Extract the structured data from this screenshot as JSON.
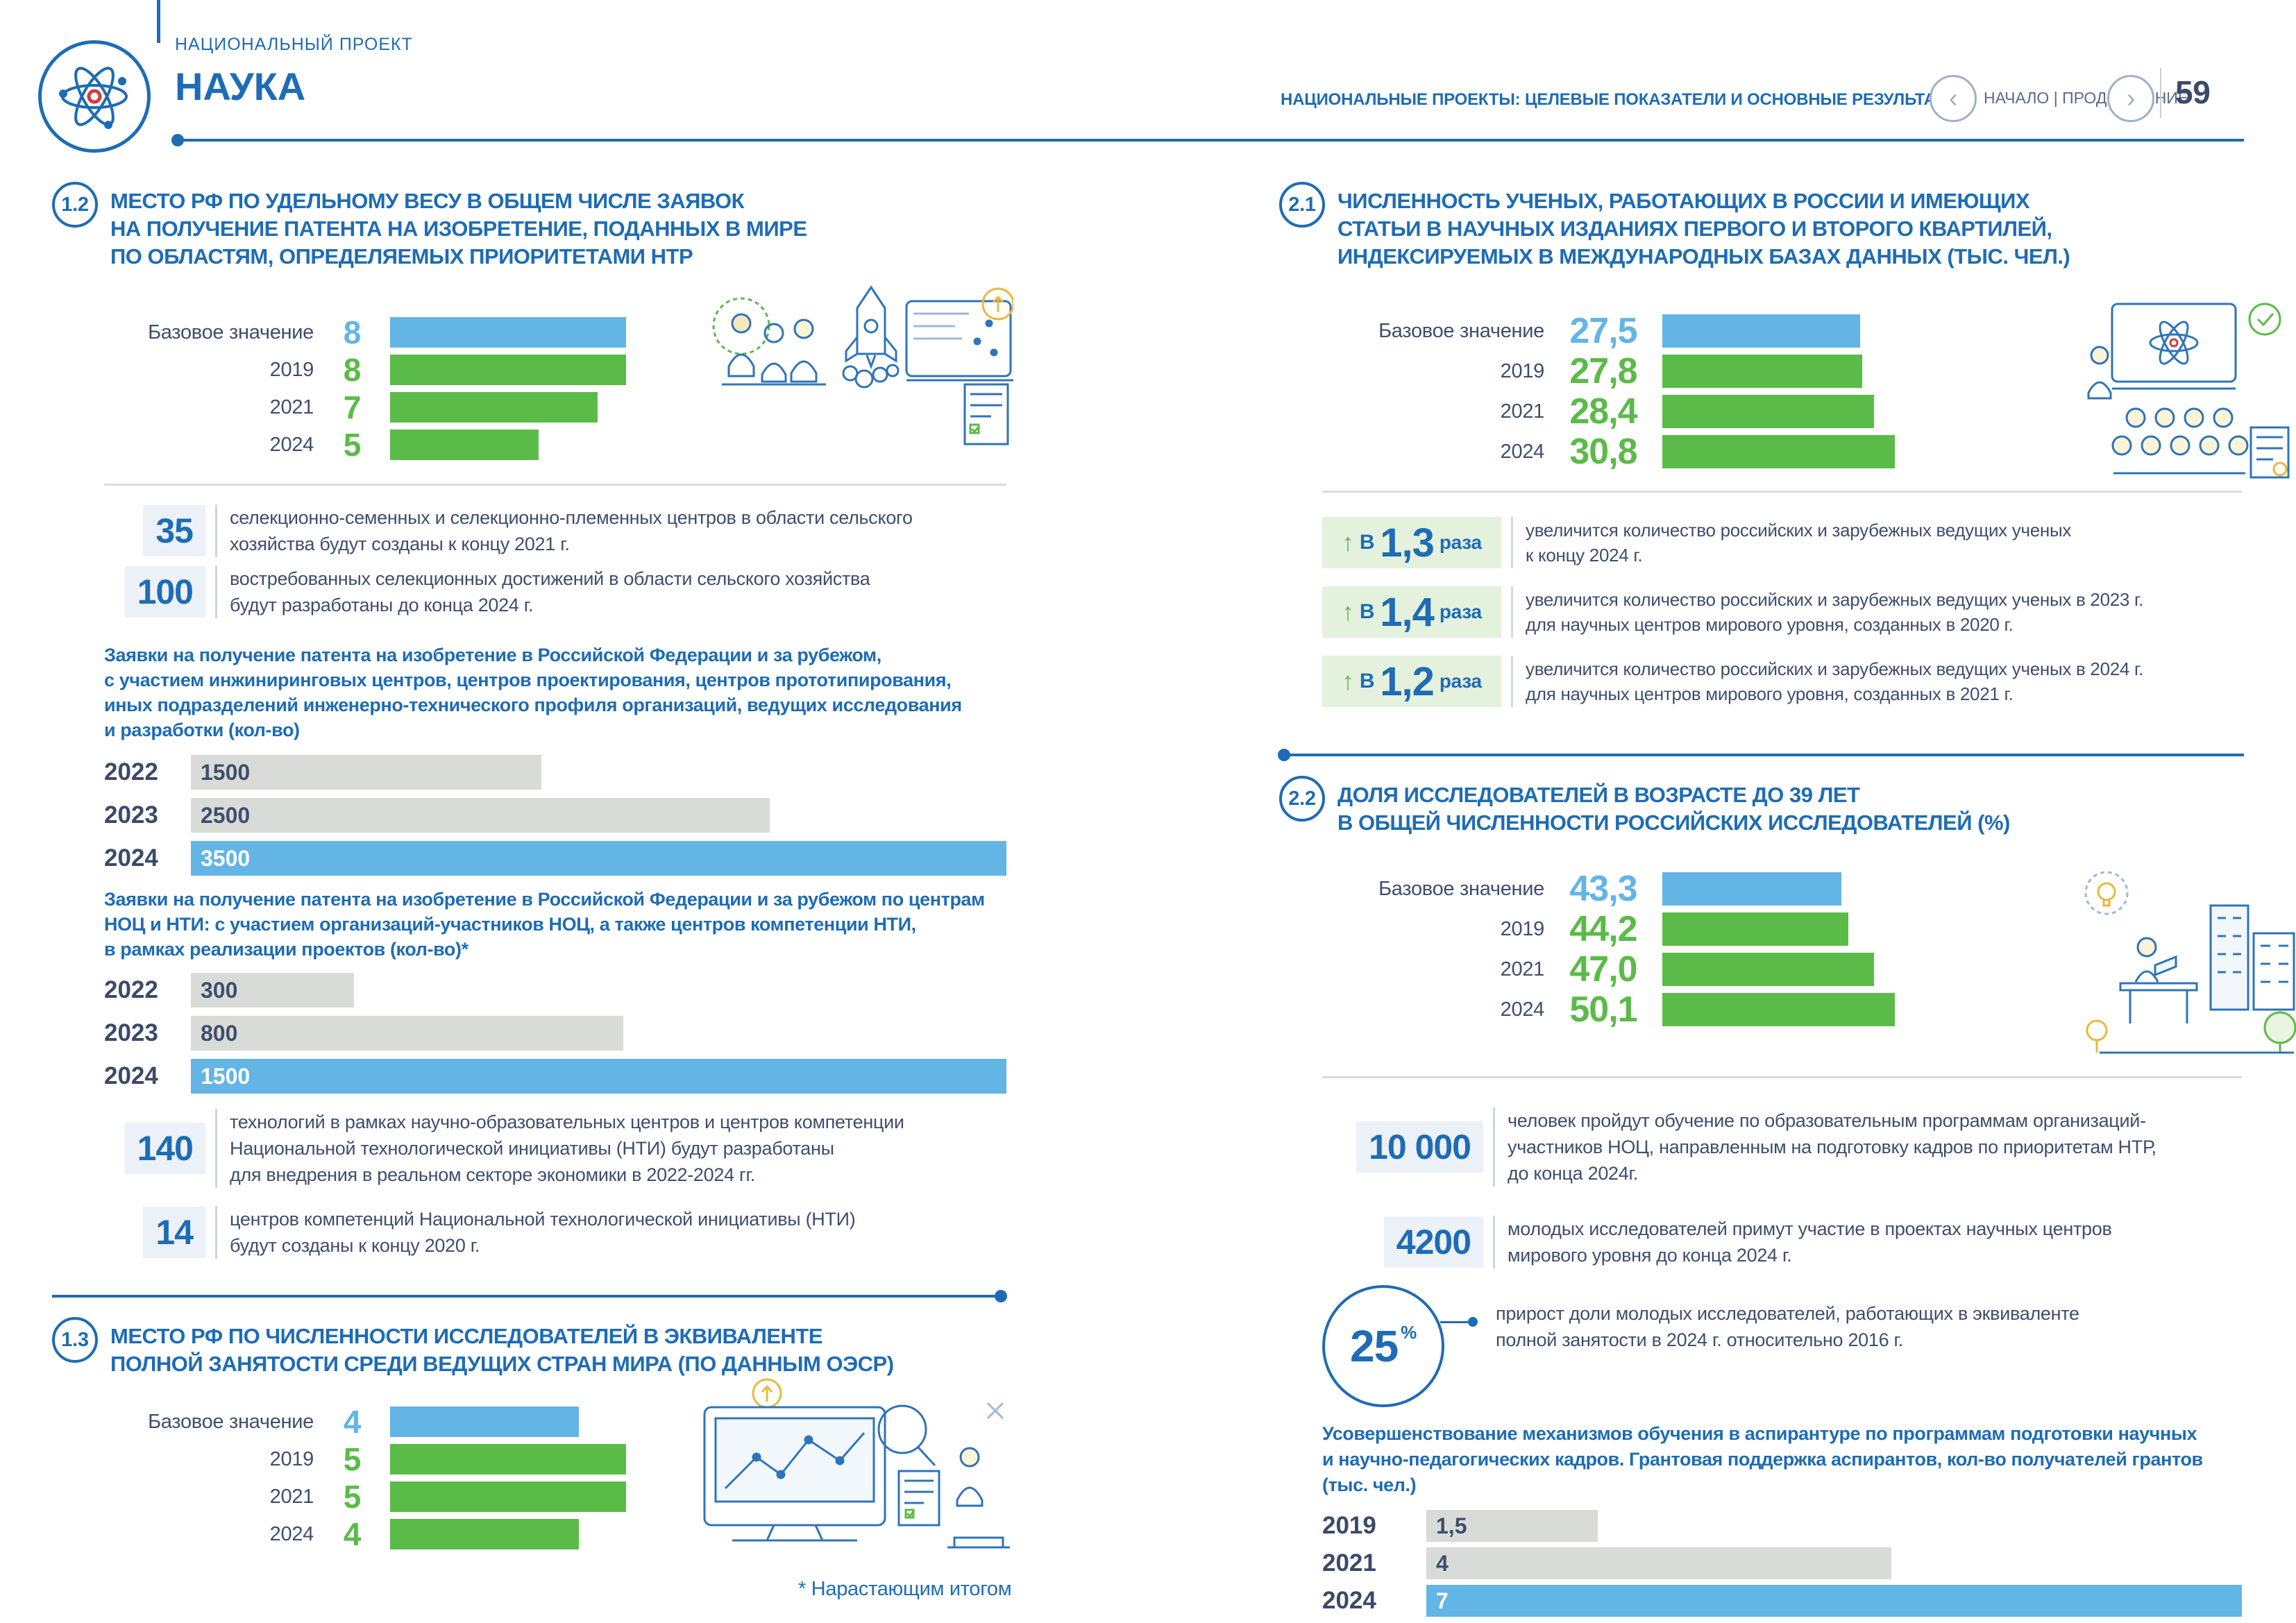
{
  "page": {
    "project_label": "НАЦИОНАЛЬНЫЙ ПРОЕКТ",
    "project_title": "НАУКА",
    "header_right": "НАЦИОНАЛЬНЫЕ ПРОЕКТЫ: ЦЕЛЕВЫЕ ПОКАЗАТЕЛИ И ОСНОВНЫЕ РЕЗУЛЬТАТЫ",
    "nav_label": "НАЧАЛО | ПРОДОЛЖЕНИЕ",
    "page_number": "59",
    "footnote": "* Нарастающим итогом"
  },
  "icons": {
    "prev": "‹",
    "next": "›",
    "up_arrow": "↑",
    "atom": "atom-icon"
  },
  "colors": {
    "blue": "#1e6cb5",
    "light_blue": "#63b5e5",
    "green": "#5bbb48",
    "gray": "#d8dbd7",
    "navy": "#3f4e6d",
    "white": "#ffffff",
    "light_green_bg": "#e4f1dc",
    "light_blue_bg": "#ecf1f8"
  },
  "sections": {
    "s12": {
      "id": "1.2",
      "title_lines": [
        "МЕСТО РФ ПО УДЕЛЬНОМУ ВЕСУ В ОБЩЕМ ЧИСЛЕ ЗАЯВОК",
        "НА ПОЛУЧЕНИЕ ПАТЕНТА НА ИЗОБРЕТЕНИЕ, ПОДАННЫХ В МИРЕ",
        "ПО ОБЛАСТЯМ, ОПРЕДЕЛЯЕМЫХ ПРИОРИТЕТАМИ НТР"
      ],
      "stats": [
        {
          "number": "35",
          "lines": [
            "селекционно-семенных и селекционно-племенных центров в области сельского",
            "хозяйства будут созданы к концу 2021 г."
          ]
        },
        {
          "number": "100",
          "lines": [
            "востребованных селекционных достижений в области сельского хозяйства",
            "будут разработаны до конца 2024 г."
          ]
        }
      ],
      "para1_lines": [
        "Заявки на получение патента на изобретение в Российской Федерации и за рубежом,",
        "с участием инжиниринговых центров, центров проектирования, центров прототипирования,",
        "иных подразделений инженерно-технического профиля организаций, ведущих исследования",
        "и разработки (кол-во)"
      ],
      "para2_lines": [
        "Заявки на получение патента на изобретение в Российской Федерации и за рубежом по центрам",
        "НОЦ и НТИ: с участием организаций-участников НОЦ, а также центров компетенции НТИ,",
        "в рамках реализации проектов (кол-во)*"
      ],
      "stats2": [
        {
          "number": "140",
          "lines": [
            "технологий в рамках научно-образовательных центров и центров компетенции",
            "Национальной технологической инициативы (НТИ) будут разработаны",
            "для внедрения в реальном секторе экономики в 2022-2024 гг."
          ]
        },
        {
          "number": "14",
          "lines": [
            "центров компетенций Национальной технологической инициативы (НТИ)",
            "будут созданы к концу 2020 г."
          ]
        }
      ]
    },
    "s13": {
      "id": "1.3",
      "title_lines": [
        "МЕСТО РФ ПО ЧИСЛЕННОСТИ ИССЛЕДОВАТЕЛЕЙ В ЭКВИВАЛЕНТЕ",
        "ПОЛНОЙ ЗАНЯТОСТИ СРЕДИ ВЕДУЩИХ СТРАН МИРА (ПО ДАННЫМ ОЭСР)"
      ]
    },
    "s21": {
      "id": "2.1",
      "title_lines": [
        "ЧИСЛЕННОСТЬ УЧЕНЫХ, РАБОТАЮЩИХ В РОССИИ И ИМЕЮЩИХ",
        "СТАТЬИ В НАУЧНЫХ ИЗДАНИЯХ ПЕРВОГО И ВТОРОГО КВАРТИЛЕЙ,",
        "ИНДЕКСИРУЕМЫХ В МЕЖДУНАРОДНЫХ БАЗАХ ДАННЫХ (ТЫС. ЧЕЛ.)"
      ],
      "ratios": [
        {
          "prefix": "В",
          "value": "1,3",
          "suffix": "раза",
          "lines": [
            "увеличится количество российских и зарубежных ведущих ученых",
            "к концу 2024 г."
          ]
        },
        {
          "prefix": "В",
          "value": "1,4",
          "suffix": "раза",
          "lines": [
            "увеличится количество российских и зарубежных ведущих ученых в 2023 г.",
            "для научных центров мирового уровня, созданных в 2020 г."
          ]
        },
        {
          "prefix": "В",
          "value": "1,2",
          "suffix": "раза",
          "lines": [
            "увеличится количество российских и зарубежных ведущих ученых в 2024 г.",
            "для научных центров мирового уровня, созданных в 2021 г."
          ]
        }
      ]
    },
    "s22": {
      "id": "2.2",
      "title_lines": [
        "ДОЛЯ ИССЛЕДОВАТЕЛЕЙ В ВОЗРАСТЕ ДО 39 ЛЕТ",
        "В ОБЩЕЙ ЧИСЛЕННОСТИ РОССИЙСКИХ ИССЛЕДОВАТЕЛЕЙ (%)"
      ],
      "stats": [
        {
          "number": "10 000",
          "lines": [
            "человек пройдут обучение по образовательным программам организаций-",
            "участников НОЦ, направленным на подготовку кадров по приоритетам НТР,",
            "до конца 2024г."
          ]
        },
        {
          "number": "4200",
          "lines": [
            "молодых исследователей примут участие в проектах научных центров",
            "мирового уровня до конца 2024 г."
          ]
        }
      ],
      "circle_stat": {
        "number": "25",
        "unit": "%",
        "lines": [
          "прирост доли молодых исследователей, работающих в эквиваленте",
          "полной занятости в 2024 г. относительно 2016 г."
        ]
      },
      "para_lines": [
        "Усовершенствование механизмов обучения в аспирантуре по программам подготовки научных",
        "и научно-педагогических кадров. Грантовая поддержка аспирантов, кол-во получателей грантов",
        "(тыс. чел.)"
      ]
    }
  },
  "chart_data": [
    {
      "id": "c12-place-patent-share",
      "type": "bar",
      "orientation": "horizontal",
      "legend": false,
      "title": "Место РФ по удельному весу в общем числе заявок на получение патента на изобретение, поданных в мире по областям, определяемых приоритетами НТР",
      "categories": [
        "Базовое значение",
        "2019",
        "2021",
        "2024"
      ],
      "values": [
        8,
        8,
        7,
        5
      ],
      "rows": [
        {
          "label": "Базовое значение",
          "value": 8,
          "value_label": "8",
          "bar_pct": 100,
          "bar_color": "light_blue",
          "value_color": "light_blue"
        },
        {
          "label": "2019",
          "value": 8,
          "value_label": "8",
          "bar_pct": 100,
          "bar_color": "green",
          "value_color": "green"
        },
        {
          "label": "2021",
          "value": 7,
          "value_label": "7",
          "bar_pct": 88,
          "bar_color": "green",
          "value_color": "green"
        },
        {
          "label": "2024",
          "value": 5,
          "value_label": "5",
          "bar_pct": 63,
          "bar_color": "green",
          "value_color": "green"
        }
      ]
    },
    {
      "id": "cA-patent-applications-engineering",
      "type": "bar",
      "orientation": "horizontal",
      "legend": false,
      "title": "Заявки на получение патента на изобретение в Российской Федерации и за рубежом, с участием инжиниринговых центров, центров проектирования, центров прототипирования, иных подразделений инженерно-технического профиля организаций, ведущих исследования и разработки (кол-во)",
      "categories": [
        "2022",
        "2023",
        "2024"
      ],
      "values": [
        1500,
        2500,
        3500
      ],
      "rows": [
        {
          "label": "2022",
          "value": 1500,
          "value_label": "1500",
          "bar_pct": 43,
          "bar_color": "gray",
          "text_color": "navy"
        },
        {
          "label": "2023",
          "value": 2500,
          "value_label": "2500",
          "bar_pct": 71,
          "bar_color": "gray",
          "text_color": "navy"
        },
        {
          "label": "2024",
          "value": 3500,
          "value_label": "3500",
          "bar_pct": 100,
          "bar_color": "light_blue",
          "text_color": "white"
        }
      ]
    },
    {
      "id": "cB-patent-applications-noc-nti",
      "type": "bar",
      "orientation": "horizontal",
      "legend": false,
      "title": "Заявки на получение патента на изобретение в Российской Федерации и за рубежом по центрам НОЦ и НТИ: с участием организаций-участников НОЦ, а также центров компетенции НТИ, в рамках реализации проектов (кол-во)*",
      "categories": [
        "2022",
        "2023",
        "2024"
      ],
      "values": [
        300,
        800,
        1500
      ],
      "rows": [
        {
          "label": "2022",
          "value": 300,
          "value_label": "300",
          "bar_pct": 20,
          "bar_color": "gray",
          "text_color": "navy"
        },
        {
          "label": "2023",
          "value": 800,
          "value_label": "800",
          "bar_pct": 53,
          "bar_color": "gray",
          "text_color": "navy"
        },
        {
          "label": "2024",
          "value": 1500,
          "value_label": "1500",
          "bar_pct": 100,
          "bar_color": "light_blue",
          "text_color": "white"
        }
      ]
    },
    {
      "id": "c13-place-researchers",
      "type": "bar",
      "orientation": "horizontal",
      "legend": false,
      "title": "Место РФ по численности исследователей в эквиваленте полной занятости среди ведущих стран мира (по данным ОЭСР)",
      "categories": [
        "Базовое значение",
        "2019",
        "2021",
        "2024"
      ],
      "values": [
        4,
        5,
        5,
        4
      ],
      "rows": [
        {
          "label": "Базовое значение",
          "value": 4,
          "value_label": "4",
          "bar_pct": 80,
          "bar_color": "light_blue",
          "value_color": "light_blue"
        },
        {
          "label": "2019",
          "value": 5,
          "value_label": "5",
          "bar_pct": 100,
          "bar_color": "green",
          "value_color": "green"
        },
        {
          "label": "2021",
          "value": 5,
          "value_label": "5",
          "bar_pct": 100,
          "bar_color": "green",
          "value_color": "green"
        },
        {
          "label": "2024",
          "value": 4,
          "value_label": "4",
          "bar_pct": 80,
          "bar_color": "green",
          "value_color": "green"
        }
      ]
    },
    {
      "id": "c21-scientists-count",
      "type": "bar",
      "orientation": "horizontal",
      "legend": false,
      "title": "Численность ученых, работающих в России и имеющих статьи в научных изданиях первого и второго квартилей, индексируемых в международных базах данных (тыс. чел.)",
      "categories": [
        "Базовое значение",
        "2019",
        "2021",
        "2024"
      ],
      "values": [
        27.5,
        27.8,
        28.4,
        30.8
      ],
      "rows": [
        {
          "label": "Базовое значение",
          "value": 27.5,
          "value_label": "27,5",
          "bar_pct": 85,
          "bar_color": "light_blue",
          "value_color": "light_blue"
        },
        {
          "label": "2019",
          "value": 27.8,
          "value_label": "27,8",
          "bar_pct": 86,
          "bar_color": "green",
          "value_color": "green"
        },
        {
          "label": "2021",
          "value": 28.4,
          "value_label": "28,4",
          "bar_pct": 91,
          "bar_color": "green",
          "value_color": "green"
        },
        {
          "label": "2024",
          "value": 30.8,
          "value_label": "30,8",
          "bar_pct": 100,
          "bar_color": "green",
          "value_color": "green"
        }
      ]
    },
    {
      "id": "c22-young-researchers-share",
      "type": "bar",
      "orientation": "horizontal",
      "legend": false,
      "title": "Доля исследователей в возрасте до 39 лет в общей численности российских исследователей (%)",
      "categories": [
        "Базовое значение",
        "2019",
        "2021",
        "2024"
      ],
      "values": [
        43.3,
        44.2,
        47.0,
        50.1
      ],
      "rows": [
        {
          "label": "Базовое значение",
          "value": 43.3,
          "value_label": "43,3",
          "bar_pct": 77,
          "bar_color": "light_blue",
          "value_color": "light_blue"
        },
        {
          "label": "2019",
          "value": 44.2,
          "value_label": "44,2",
          "bar_pct": 80,
          "bar_color": "green",
          "value_color": "green"
        },
        {
          "label": "2021",
          "value": 47.0,
          "value_label": "47,0",
          "bar_pct": 91,
          "bar_color": "green",
          "value_color": "green"
        },
        {
          "label": "2024",
          "value": 50.1,
          "value_label": "50,1",
          "bar_pct": 100,
          "bar_color": "green",
          "value_color": "green"
        }
      ]
    },
    {
      "id": "cC-grant-recipients",
      "type": "bar",
      "orientation": "horizontal",
      "legend": false,
      "title": "Грантовая поддержка аспирантов, кол-во получателей грантов (тыс. чел.)",
      "categories": [
        "2019",
        "2021",
        "2024"
      ],
      "values": [
        1.5,
        4,
        7
      ],
      "rows": [
        {
          "label": "2019",
          "value": 1.5,
          "value_label": "1,5",
          "bar_pct": 21,
          "bar_color": "gray",
          "text_color": "navy"
        },
        {
          "label": "2021",
          "value": 4,
          "value_label": "4",
          "bar_pct": 57,
          "bar_color": "gray",
          "text_color": "navy"
        },
        {
          "label": "2024",
          "value": 7,
          "value_label": "7",
          "bar_pct": 100,
          "bar_color": "light_blue",
          "text_color": "white"
        }
      ]
    }
  ]
}
